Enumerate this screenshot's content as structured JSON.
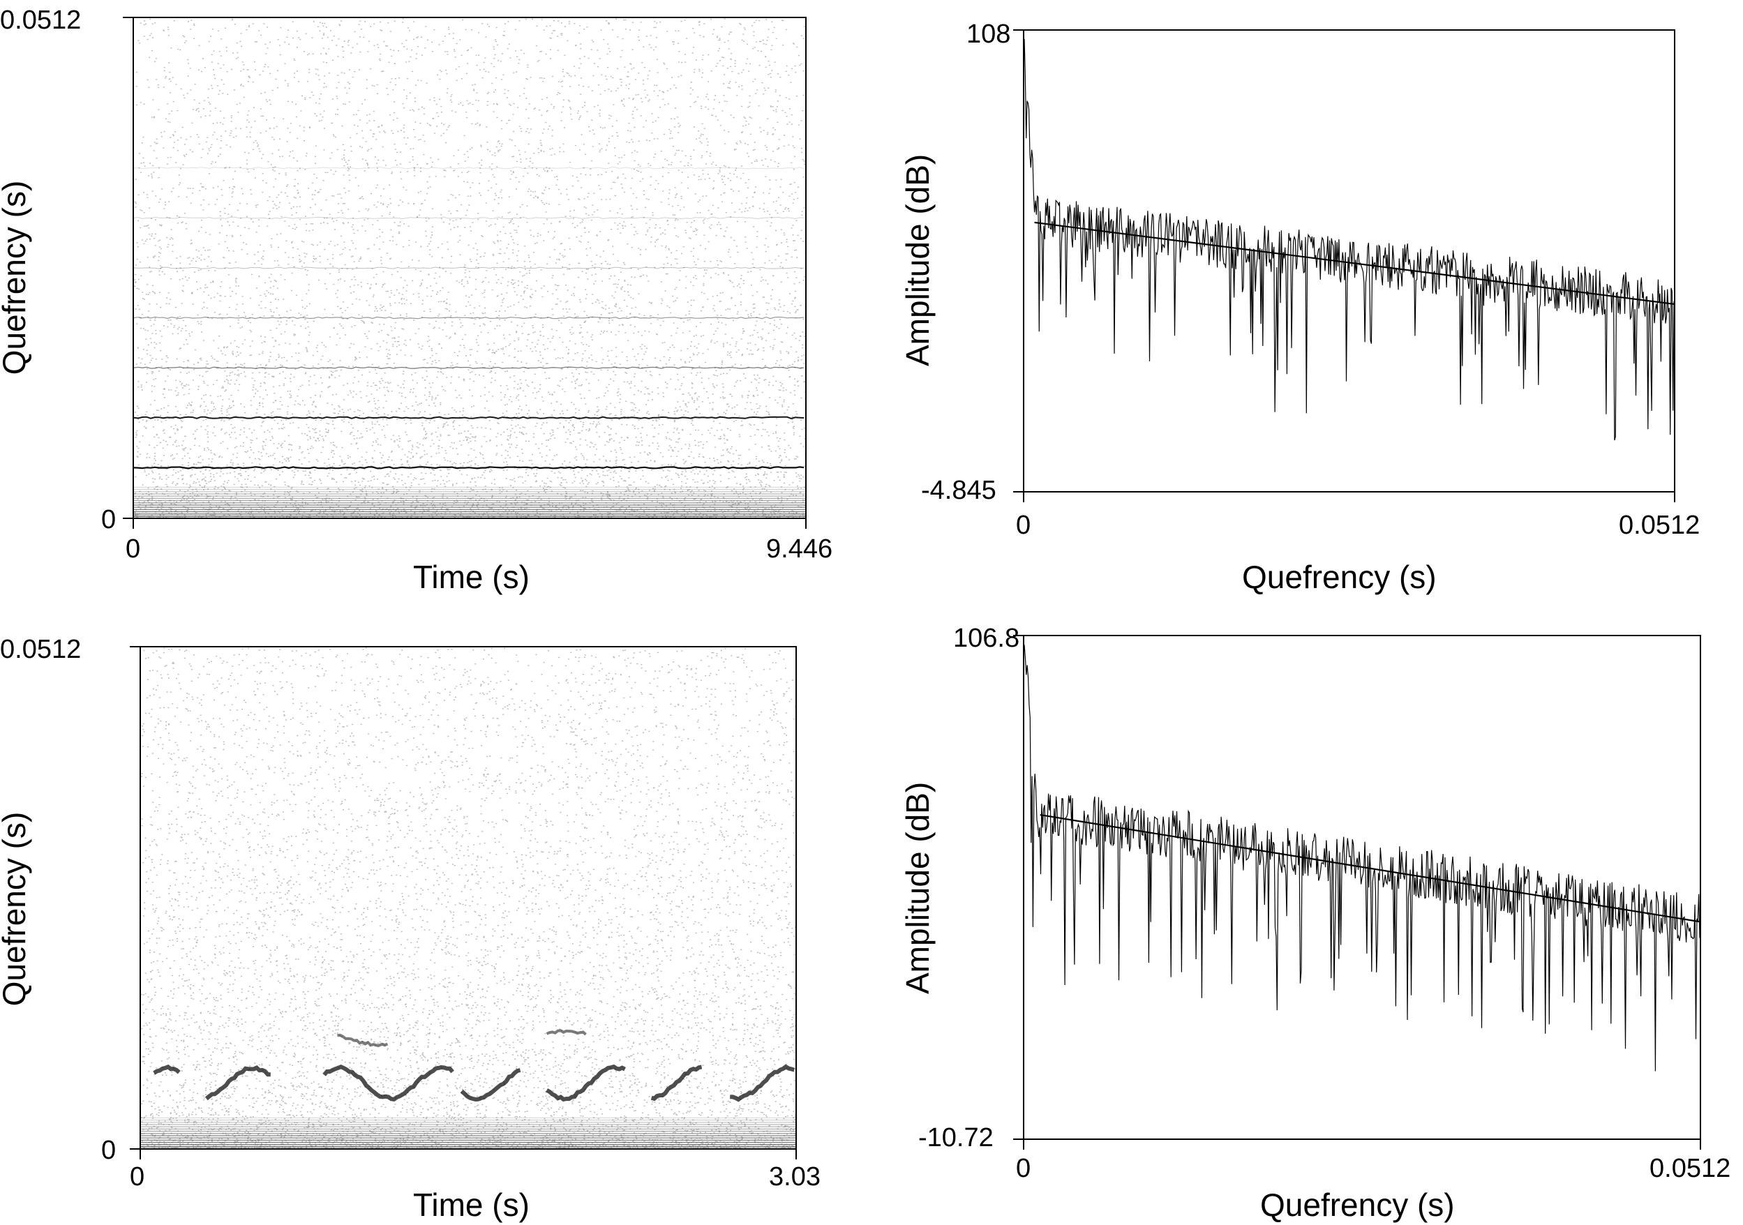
{
  "chart_data": [
    {
      "type": "heatmap",
      "panel": "top-left",
      "xlabel": "Time (s)",
      "ylabel": "Quefrency (s)",
      "xlim": [
        0,
        9.446
      ],
      "ylim": [
        0,
        0.0512
      ],
      "x_ticks": [
        "0",
        "9.446"
      ],
      "y_ticks": [
        "0",
        "0.0512"
      ],
      "colors": {
        "ink": "#000000",
        "grey": "#808080"
      }
    },
    {
      "type": "line",
      "panel": "top-right",
      "xlabel": "Quefrency (s)",
      "ylabel": "Amplitude (dB)",
      "xlim": [
        0,
        0.0512
      ],
      "ylim": [
        -4.845,
        108
      ],
      "x_ticks": [
        "0",
        "0.0512"
      ],
      "y_ticks": [
        "-4.845",
        "108"
      ],
      "trend_line": {
        "x": [
          0.0008,
          0.0512
        ],
        "y": [
          61,
          41
        ]
      }
    },
    {
      "type": "heatmap",
      "panel": "bottom-left",
      "xlabel": "Time (s)",
      "ylabel": "Quefrency (s)",
      "xlim": [
        0,
        3.03
      ],
      "ylim": [
        0,
        0.0512
      ],
      "x_ticks": [
        "0",
        "3.03"
      ],
      "y_ticks": [
        "0",
        "0.0512"
      ],
      "colors": {
        "ink": "#000000",
        "grey": "#808080"
      }
    },
    {
      "type": "line",
      "panel": "bottom-right",
      "xlabel": "Quefrency (s)",
      "ylabel": "Amplitude (dB)",
      "xlim": [
        0,
        0.0512
      ],
      "ylim": [
        -10.72,
        106.8
      ],
      "x_ticks": [
        "0",
        "0.0512"
      ],
      "y_ticks": [
        "-10.72",
        "106.8"
      ],
      "trend_line": {
        "x": [
          0.0012,
          0.0512
        ],
        "y": [
          65,
          40
        ]
      }
    }
  ]
}
